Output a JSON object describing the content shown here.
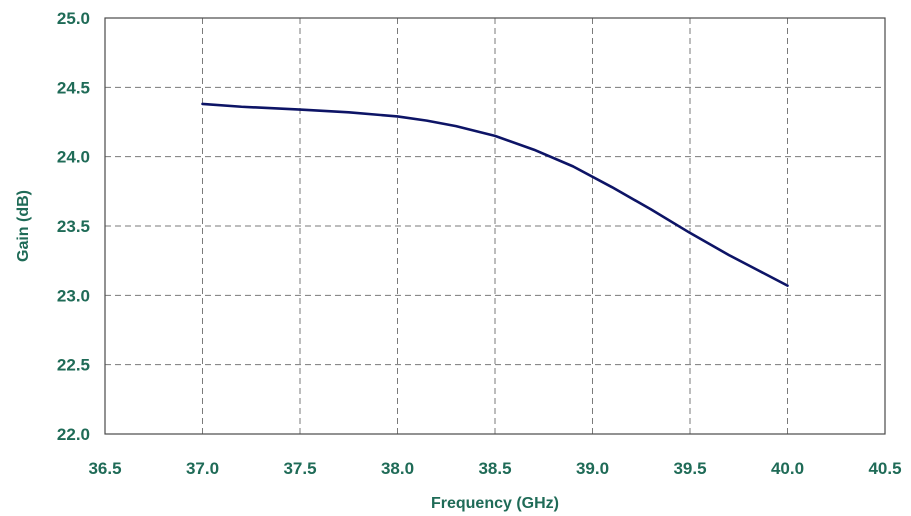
{
  "colors": {
    "text": "#1f6b57",
    "line": "#0d1466",
    "grid": "#7a7a7a",
    "frame": "#4a4a4a"
  },
  "chart_data": {
    "type": "line",
    "title": "",
    "xlabel": "Frequency (GHz)",
    "ylabel": "Gain (dB)",
    "xlim": [
      36.5,
      40.5
    ],
    "ylim": [
      22.0,
      25.0
    ],
    "xticks": [
      "36.5",
      "37.0",
      "37.5",
      "38.0",
      "38.5",
      "39.0",
      "39.5",
      "40.0",
      "40.5"
    ],
    "yticks": [
      "22.0",
      "22.5",
      "23.0",
      "23.5",
      "24.0",
      "24.5",
      "25.0"
    ],
    "grid": true,
    "legend": "none",
    "series": [
      {
        "x": [
          37.0,
          37.2,
          37.5,
          37.75,
          38.0,
          38.15,
          38.3,
          38.5,
          38.7,
          38.9,
          39.1,
          39.3,
          39.5,
          39.7,
          39.85,
          40.0
        ],
        "y": [
          24.38,
          24.36,
          24.34,
          24.32,
          24.29,
          24.26,
          24.22,
          24.15,
          24.05,
          23.93,
          23.78,
          23.62,
          23.45,
          23.29,
          23.18,
          23.07
        ]
      }
    ]
  }
}
